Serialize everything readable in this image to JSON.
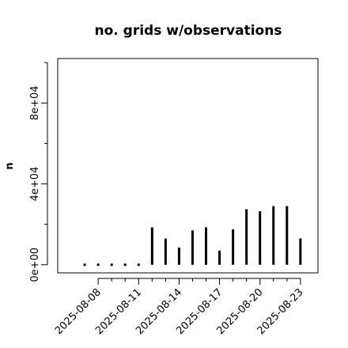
{
  "chart_data": {
    "type": "bar",
    "title": "no. grids w/observations",
    "xlabel": "",
    "ylabel": "n",
    "ylim": [
      -4000,
      102000
    ],
    "grid": false,
    "y_ticks": [
      {
        "value": 0,
        "label": "0e+00"
      },
      {
        "value": 40000,
        "label": "4e+04"
      },
      {
        "value": 80000,
        "label": "8e+04"
      }
    ],
    "y_minor_ticks": [
      20000,
      60000,
      100000
    ],
    "x_ticks": [
      {
        "day": 8,
        "label": "2025-08-08",
        "color": "#000000"
      },
      {
        "day": 11,
        "label": "2025-08-11",
        "color": "#000000"
      },
      {
        "day": 14,
        "label": "2025-08-14",
        "color": "#228B22"
      },
      {
        "day": 17,
        "label": "2025-08-17",
        "color": "#000000"
      },
      {
        "day": 20,
        "label": "2025-08-20",
        "color": "#000000"
      },
      {
        "day": 23,
        "label": "2025-08-23",
        "color": "#000000"
      }
    ],
    "x_minor_ticks": [
      9,
      10,
      12,
      13,
      15,
      16,
      18,
      19,
      21,
      22
    ],
    "xlim": [
      5,
      24.3
    ],
    "categories": [
      "2025-08-07",
      "2025-08-08",
      "2025-08-09",
      "2025-08-10",
      "2025-08-11",
      "2025-08-12",
      "2025-08-13",
      "2025-08-14",
      "2025-08-15",
      "2025-08-16",
      "2025-08-17",
      "2025-08-18",
      "2025-08-19",
      "2025-08-20",
      "2025-08-21",
      "2025-08-22",
      "2025-08-23"
    ],
    "days": [
      7,
      8,
      9,
      10,
      11,
      12,
      13,
      14,
      15,
      16,
      17,
      18,
      19,
      20,
      21,
      22,
      23
    ],
    "values": [
      0,
      0,
      0,
      0,
      0,
      18500,
      13000,
      8500,
      17000,
      18500,
      7000,
      17500,
      27500,
      26500,
      29000,
      29000,
      13000
    ]
  }
}
